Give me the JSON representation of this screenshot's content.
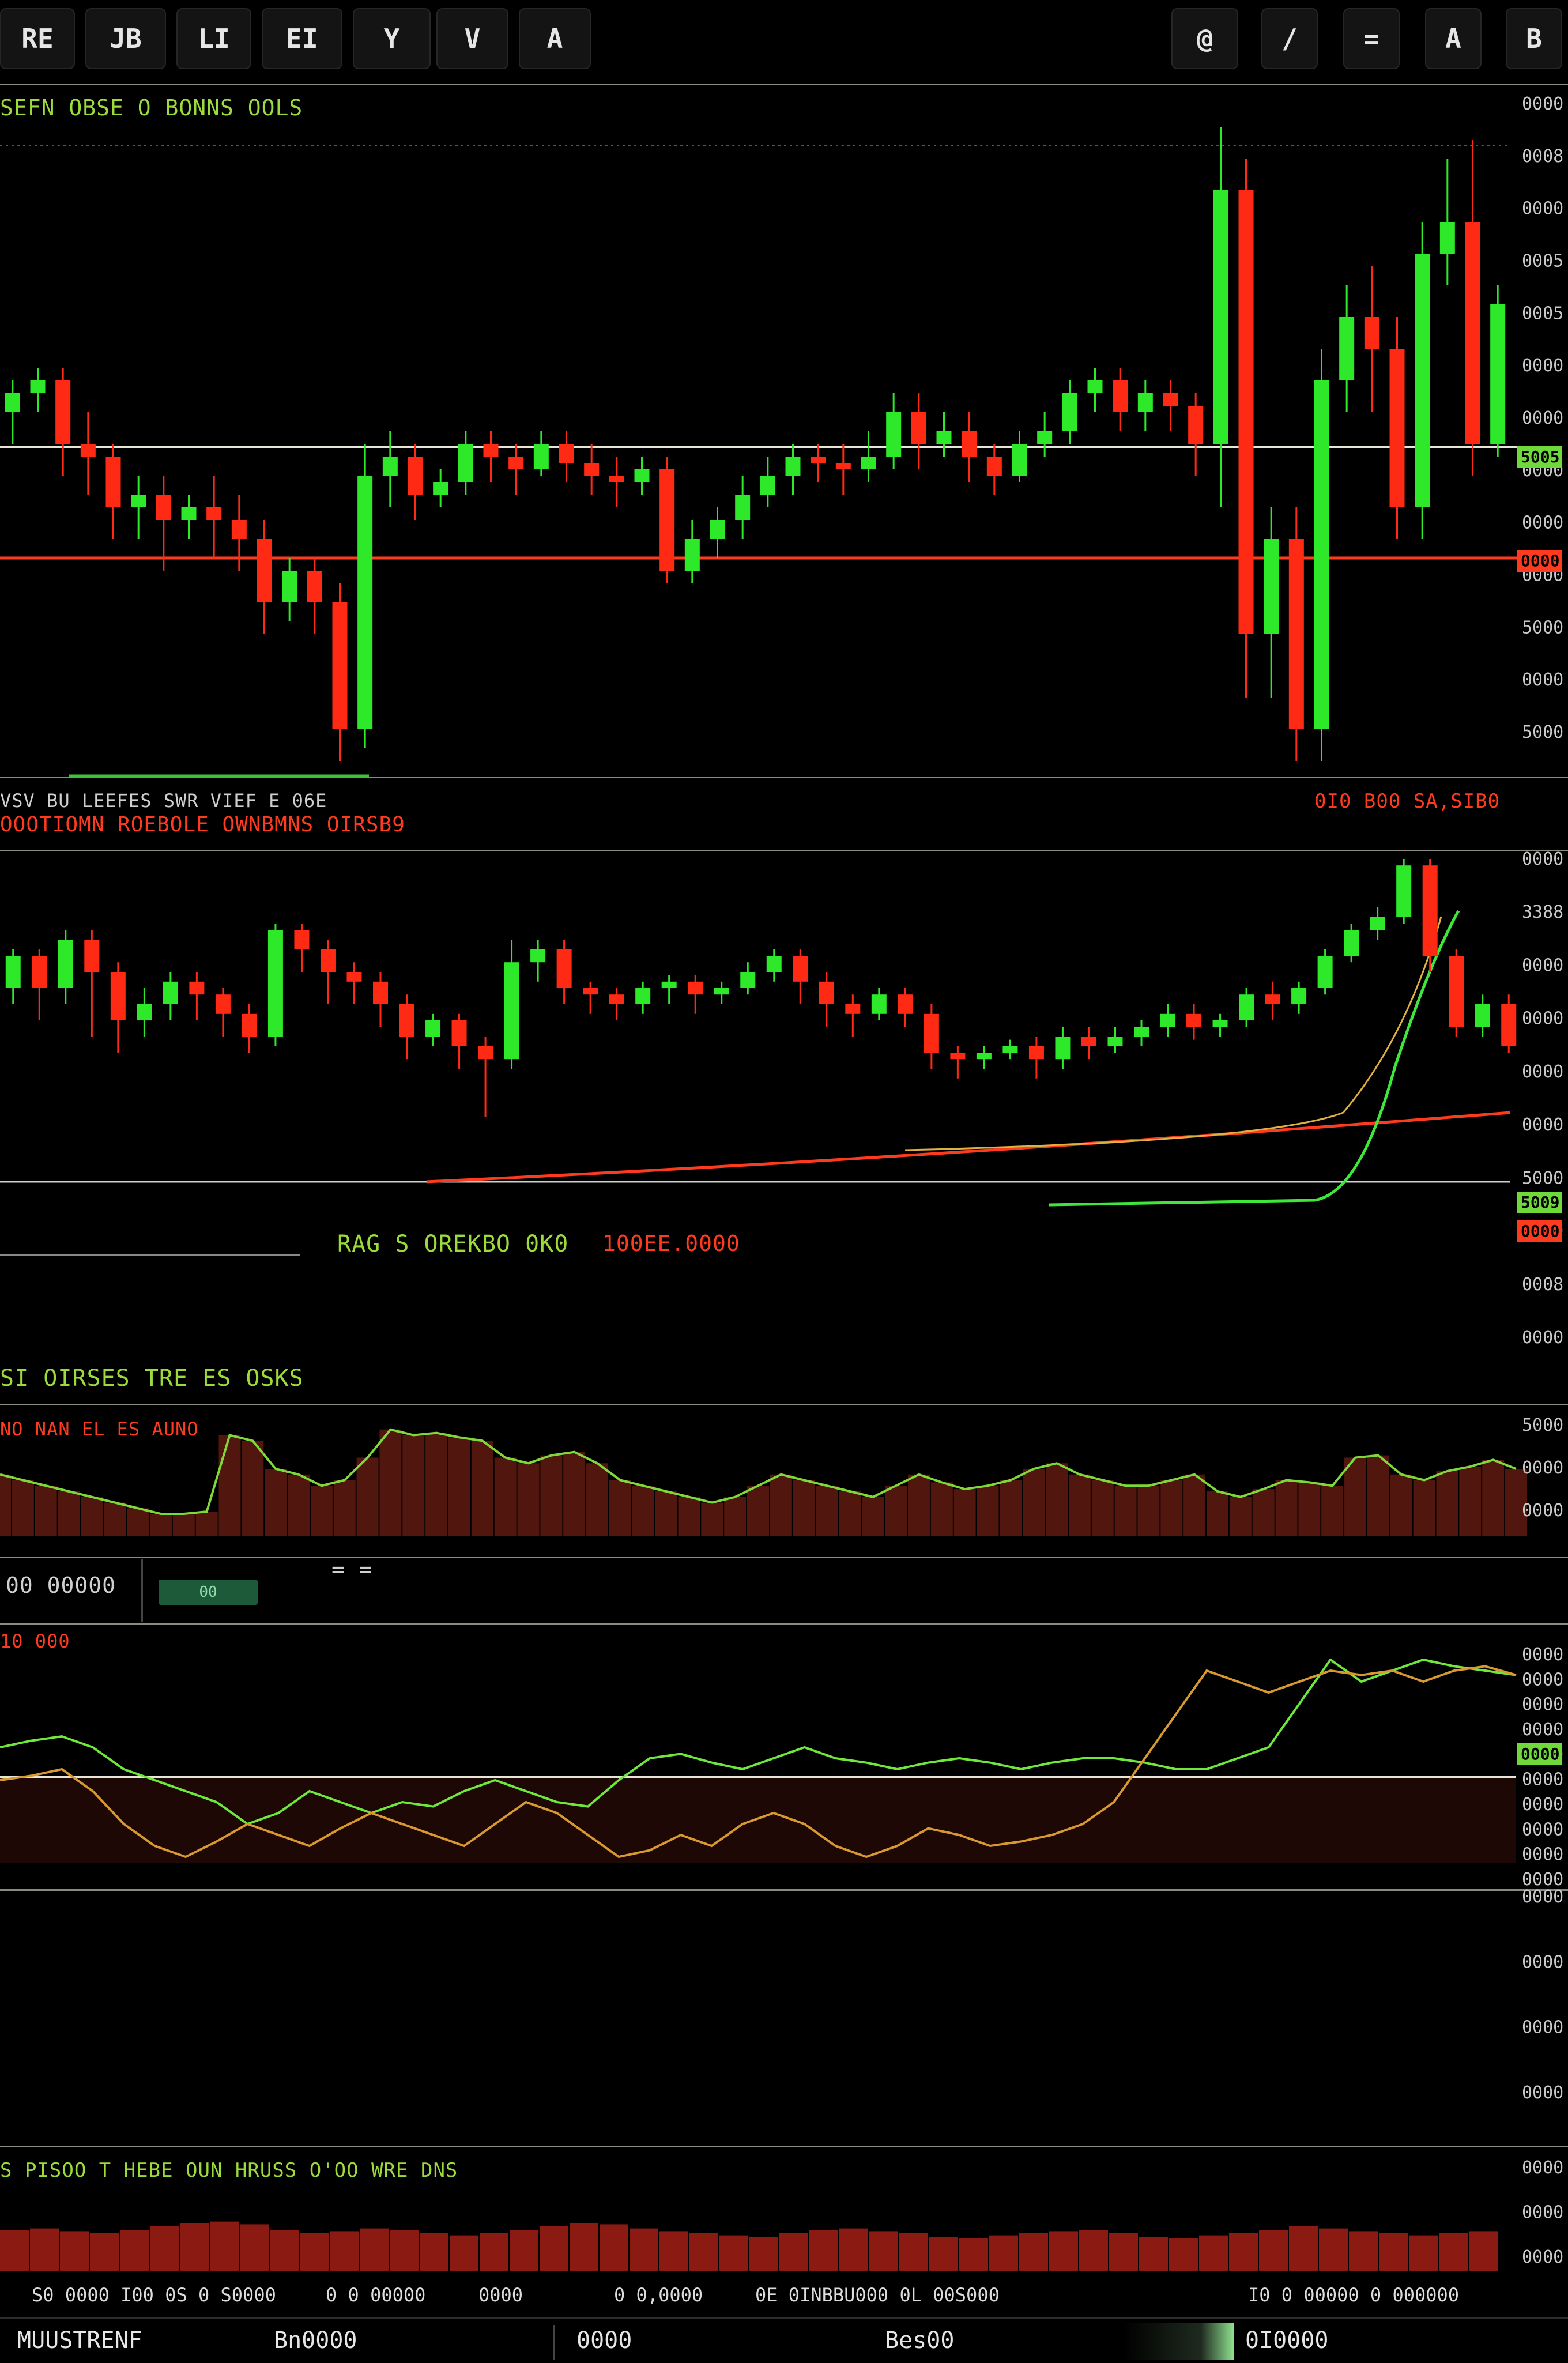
{
  "toolbar": {
    "left_buttons": [
      "RE",
      "JB",
      "LI",
      "EI",
      "Y",
      "V",
      "A"
    ],
    "right_buttons": [
      "@",
      "/",
      "=",
      "A",
      "B"
    ]
  },
  "panel1": {
    "label": "SEFN OBSE O BONNS OOLS",
    "right_price_labels": [
      "0000",
      "0008",
      "0000",
      "0005",
      "0005",
      "0000",
      "0000",
      "0000",
      "0000",
      "0000",
      "5000",
      "0000",
      "5000"
    ],
    "green_price_tag": "5005",
    "red_price_tag": "0000",
    "bottom_left_text": "VSV BU LEEFES SWR VIEF E 06E",
    "bottom_right_text": "0I0 B00 SA,SIB0"
  },
  "panel2": {
    "label": "OOOTIOMN ROEBOLE OWNBMNS OIRSB9",
    "right_price_labels": [
      "0000",
      "3388",
      "0000",
      "0000",
      "0000",
      "0000",
      "5000",
      "0000",
      "0008",
      "0000"
    ],
    "green_price_tag": "5009",
    "red_price_tag": "0000",
    "center_green_text": "RAG S OREKBO 0K0",
    "center_red_text": "100EE.0000"
  },
  "panel3": {
    "header_text": "SI OIRSES TRE ES OSKS",
    "label": "NO NAN EL ES AUNO",
    "right_price_labels": [
      "5000",
      "0000",
      "0000"
    ],
    "chart_data": {
      "type": "area",
      "series": [
        {
          "values": [
            0.55,
            0.5,
            0.45,
            0.4,
            0.35,
            0.3,
            0.25,
            0.2,
            0.2,
            0.22,
            0.9,
            0.85,
            0.6,
            0.55,
            0.45,
            0.5,
            0.7,
            0.95,
            0.9,
            0.92,
            0.88,
            0.85,
            0.7,
            0.65,
            0.72,
            0.75,
            0.65,
            0.5,
            0.45,
            0.4,
            0.35,
            0.3,
            0.35,
            0.45,
            0.55,
            0.5,
            0.45,
            0.4,
            0.35,
            0.45,
            0.55,
            0.48,
            0.42,
            0.45,
            0.5,
            0.6,
            0.65,
            0.55,
            0.5,
            0.45,
            0.45,
            0.5,
            0.55,
            0.4,
            0.35,
            0.42,
            0.5,
            0.48,
            0.45,
            0.7,
            0.72,
            0.55,
            0.5,
            0.58,
            0.62,
            0.68,
            0.6
          ]
        }
      ]
    }
  },
  "info_bar": {
    "left_text": "00 00000",
    "chip_text": "00",
    "center_text": "= ="
  },
  "panel4": {
    "label": "10 000",
    "right_price_labels": [
      "0000",
      "0000",
      "0000",
      "0000",
      "0000",
      "0000",
      "0000",
      "0000",
      "0000",
      "0000"
    ],
    "green_price_tag": "0000",
    "chart_data": {
      "type": "line",
      "series": [
        {
          "values": [
            0.55,
            0.58,
            0.6,
            0.55,
            0.45,
            0.4,
            0.35,
            0.3,
            0.2,
            0.25,
            0.35,
            0.3,
            0.25,
            0.3,
            0.28,
            0.35,
            0.4,
            0.35,
            0.3,
            0.28,
            0.4,
            0.5,
            0.52,
            0.48,
            0.45,
            0.5,
            0.55,
            0.5,
            0.48,
            0.45,
            0.48,
            0.5,
            0.48,
            0.45,
            0.48,
            0.5,
            0.5,
            0.48,
            0.45,
            0.45,
            0.5,
            0.55,
            0.75,
            0.95,
            0.85,
            0.9,
            0.95,
            0.92,
            0.9,
            0.88
          ]
        },
        {
          "values": [
            0.4,
            0.42,
            0.45,
            0.35,
            0.2,
            0.1,
            0.05,
            0.12,
            0.2,
            0.15,
            0.1,
            0.18,
            0.25,
            0.2,
            0.15,
            0.1,
            0.2,
            0.3,
            0.25,
            0.15,
            0.05,
            0.08,
            0.15,
            0.1,
            0.2,
            0.25,
            0.2,
            0.1,
            0.05,
            0.1,
            0.18,
            0.15,
            0.1,
            0.12,
            0.15,
            0.2,
            0.3,
            0.5,
            0.7,
            0.9,
            0.85,
            0.8,
            0.85,
            0.9,
            0.88,
            0.9,
            0.85,
            0.9,
            0.92,
            0.88
          ]
        }
      ]
    }
  },
  "panel5": {
    "right_price_labels": [
      "0000",
      "0000",
      "0000",
      "0000"
    ]
  },
  "panel6": {
    "label": "S PISOO T HEBE OUN HRUSS O'OO WRE DNS",
    "right_price_labels": [
      "0000",
      "0000",
      "0000"
    ],
    "chart_data": {
      "type": "bar",
      "values": [
        0.6,
        0.62,
        0.58,
        0.55,
        0.6,
        0.65,
        0.7,
        0.72,
        0.68,
        0.6,
        0.55,
        0.58,
        0.62,
        0.6,
        0.55,
        0.52,
        0.55,
        0.6,
        0.65,
        0.7,
        0.68,
        0.62,
        0.58,
        0.55,
        0.52,
        0.5,
        0.55,
        0.6,
        0.62,
        0.58,
        0.55,
        0.5,
        0.48,
        0.52,
        0.55,
        0.58,
        0.6,
        0.55,
        0.5,
        0.48,
        0.52,
        0.55,
        0.6,
        0.65,
        0.62,
        0.58,
        0.55,
        0.52,
        0.55,
        0.58
      ]
    }
  },
  "bottom_ticker": [
    "S0 0000 I00 0S 0 S0000",
    "0 0 00000",
    "0000",
    "0 0,0000",
    "0E 0INBBU000 0L 00S000",
    "I0 0 00000 0 000000"
  ],
  "status_bar": {
    "items": [
      "MUUSTRENF",
      "Bn0000",
      "0000",
      "Bes00",
      "0I0000"
    ]
  },
  "main_chart": {
    "chart_data": {
      "type": "candlestick",
      "candles": [
        [
          0.55,
          0.58,
          0.5,
          0.6
        ],
        [
          0.58,
          0.6,
          0.55,
          0.62
        ],
        [
          0.6,
          0.5,
          0.45,
          0.62
        ],
        [
          0.5,
          0.48,
          0.42,
          0.55
        ],
        [
          0.48,
          0.4,
          0.35,
          0.5
        ],
        [
          0.4,
          0.42,
          0.35,
          0.45
        ],
        [
          0.42,
          0.38,
          0.3,
          0.45
        ],
        [
          0.38,
          0.4,
          0.35,
          0.42
        ],
        [
          0.4,
          0.38,
          0.32,
          0.45
        ],
        [
          0.38,
          0.35,
          0.3,
          0.42
        ],
        [
          0.35,
          0.25,
          0.2,
          0.38
        ],
        [
          0.25,
          0.3,
          0.22,
          0.32
        ],
        [
          0.3,
          0.25,
          0.2,
          0.32
        ],
        [
          0.25,
          0.05,
          0.0,
          0.28
        ],
        [
          0.05,
          0.45,
          0.02,
          0.5
        ],
        [
          0.45,
          0.48,
          0.4,
          0.52
        ],
        [
          0.48,
          0.42,
          0.38,
          0.5
        ],
        [
          0.42,
          0.44,
          0.4,
          0.46
        ],
        [
          0.44,
          0.5,
          0.42,
          0.52
        ],
        [
          0.5,
          0.48,
          0.44,
          0.52
        ],
        [
          0.48,
          0.46,
          0.42,
          0.5
        ],
        [
          0.46,
          0.5,
          0.45,
          0.52
        ],
        [
          0.5,
          0.47,
          0.44,
          0.52
        ],
        [
          0.47,
          0.45,
          0.42,
          0.5
        ],
        [
          0.45,
          0.44,
          0.4,
          0.48
        ],
        [
          0.44,
          0.46,
          0.42,
          0.48
        ],
        [
          0.46,
          0.3,
          0.28,
          0.48
        ],
        [
          0.3,
          0.35,
          0.28,
          0.38
        ],
        [
          0.35,
          0.38,
          0.32,
          0.4
        ],
        [
          0.38,
          0.42,
          0.35,
          0.45
        ],
        [
          0.42,
          0.45,
          0.4,
          0.48
        ],
        [
          0.45,
          0.48,
          0.42,
          0.5
        ],
        [
          0.48,
          0.47,
          0.44,
          0.5
        ],
        [
          0.47,
          0.46,
          0.42,
          0.5
        ],
        [
          0.46,
          0.48,
          0.44,
          0.52
        ],
        [
          0.48,
          0.55,
          0.46,
          0.58
        ],
        [
          0.55,
          0.5,
          0.46,
          0.58
        ],
        [
          0.5,
          0.52,
          0.48,
          0.55
        ],
        [
          0.52,
          0.48,
          0.44,
          0.55
        ],
        [
          0.48,
          0.45,
          0.42,
          0.5
        ],
        [
          0.45,
          0.5,
          0.44,
          0.52
        ],
        [
          0.5,
          0.52,
          0.48,
          0.55
        ],
        [
          0.52,
          0.58,
          0.5,
          0.6
        ],
        [
          0.58,
          0.6,
          0.55,
          0.62
        ],
        [
          0.6,
          0.55,
          0.52,
          0.62
        ],
        [
          0.55,
          0.58,
          0.52,
          0.6
        ],
        [
          0.58,
          0.56,
          0.52,
          0.6
        ],
        [
          0.56,
          0.5,
          0.45,
          0.58
        ],
        [
          0.5,
          0.9,
          0.4,
          1.0
        ],
        [
          0.9,
          0.2,
          0.1,
          0.95
        ],
        [
          0.2,
          0.35,
          0.1,
          0.4
        ],
        [
          0.35,
          0.05,
          0.0,
          0.4
        ],
        [
          0.05,
          0.6,
          0.0,
          0.65
        ],
        [
          0.6,
          0.7,
          0.55,
          0.75
        ],
        [
          0.7,
          0.65,
          0.55,
          0.78
        ],
        [
          0.65,
          0.4,
          0.35,
          0.7
        ],
        [
          0.4,
          0.8,
          0.35,
          0.85
        ],
        [
          0.8,
          0.85,
          0.75,
          0.95
        ],
        [
          0.85,
          0.5,
          0.45,
          0.98
        ],
        [
          0.5,
          0.72,
          0.48,
          0.75
        ]
      ]
    }
  },
  "mid_chart": {
    "chart_data": {
      "type": "candlestick",
      "candles": [
        [
          0.6,
          0.7,
          0.55,
          0.72
        ],
        [
          0.7,
          0.6,
          0.5,
          0.72
        ],
        [
          0.6,
          0.75,
          0.55,
          0.78
        ],
        [
          0.75,
          0.65,
          0.45,
          0.78
        ],
        [
          0.65,
          0.5,
          0.4,
          0.68
        ],
        [
          0.5,
          0.55,
          0.45,
          0.6
        ],
        [
          0.55,
          0.62,
          0.5,
          0.65
        ],
        [
          0.62,
          0.58,
          0.5,
          0.65
        ],
        [
          0.58,
          0.52,
          0.45,
          0.6
        ],
        [
          0.52,
          0.45,
          0.4,
          0.55
        ],
        [
          0.45,
          0.78,
          0.42,
          0.8
        ],
        [
          0.78,
          0.72,
          0.65,
          0.8
        ],
        [
          0.72,
          0.65,
          0.55,
          0.75
        ],
        [
          0.65,
          0.62,
          0.55,
          0.68
        ],
        [
          0.62,
          0.55,
          0.48,
          0.65
        ],
        [
          0.55,
          0.45,
          0.38,
          0.58
        ],
        [
          0.45,
          0.5,
          0.42,
          0.52
        ],
        [
          0.5,
          0.42,
          0.35,
          0.52
        ],
        [
          0.42,
          0.38,
          0.2,
          0.45
        ],
        [
          0.38,
          0.68,
          0.35,
          0.75
        ],
        [
          0.68,
          0.72,
          0.62,
          0.75
        ],
        [
          0.72,
          0.6,
          0.55,
          0.75
        ],
        [
          0.6,
          0.58,
          0.52,
          0.62
        ],
        [
          0.58,
          0.55,
          0.5,
          0.6
        ],
        [
          0.55,
          0.6,
          0.52,
          0.62
        ],
        [
          0.6,
          0.62,
          0.55,
          0.64
        ],
        [
          0.62,
          0.58,
          0.52,
          0.64
        ],
        [
          0.58,
          0.6,
          0.55,
          0.62
        ],
        [
          0.6,
          0.65,
          0.58,
          0.68
        ],
        [
          0.65,
          0.7,
          0.62,
          0.72
        ],
        [
          0.7,
          0.62,
          0.55,
          0.72
        ],
        [
          0.62,
          0.55,
          0.48,
          0.65
        ],
        [
          0.55,
          0.52,
          0.45,
          0.58
        ],
        [
          0.52,
          0.58,
          0.5,
          0.6
        ],
        [
          0.58,
          0.52,
          0.48,
          0.6
        ],
        [
          0.52,
          0.4,
          0.35,
          0.55
        ],
        [
          0.4,
          0.38,
          0.32,
          0.42
        ],
        [
          0.38,
          0.4,
          0.35,
          0.42
        ],
        [
          0.4,
          0.42,
          0.38,
          0.44
        ],
        [
          0.42,
          0.38,
          0.32,
          0.45
        ],
        [
          0.38,
          0.45,
          0.35,
          0.48
        ],
        [
          0.45,
          0.42,
          0.38,
          0.48
        ],
        [
          0.42,
          0.45,
          0.4,
          0.48
        ],
        [
          0.45,
          0.48,
          0.42,
          0.5
        ],
        [
          0.48,
          0.52,
          0.45,
          0.55
        ],
        [
          0.52,
          0.48,
          0.44,
          0.55
        ],
        [
          0.48,
          0.5,
          0.45,
          0.52
        ],
        [
          0.5,
          0.58,
          0.48,
          0.6
        ],
        [
          0.58,
          0.55,
          0.5,
          0.62
        ],
        [
          0.55,
          0.6,
          0.52,
          0.62
        ],
        [
          0.6,
          0.7,
          0.58,
          0.72
        ],
        [
          0.7,
          0.78,
          0.68,
          0.8
        ],
        [
          0.78,
          0.82,
          0.75,
          0.85
        ],
        [
          0.82,
          0.98,
          0.8,
          1.0
        ],
        [
          0.98,
          0.7,
          0.65,
          1.0
        ],
        [
          0.7,
          0.48,
          0.45,
          0.72
        ],
        [
          0.48,
          0.55,
          0.45,
          0.58
        ],
        [
          0.55,
          0.42,
          0.4,
          0.58
        ]
      ]
    }
  },
  "colors": {
    "up": "#2ee82a",
    "down": "#ff2a14",
    "accent_green": "#9bdc3a",
    "accent_red": "#ff3b1f",
    "background": "#000000"
  }
}
